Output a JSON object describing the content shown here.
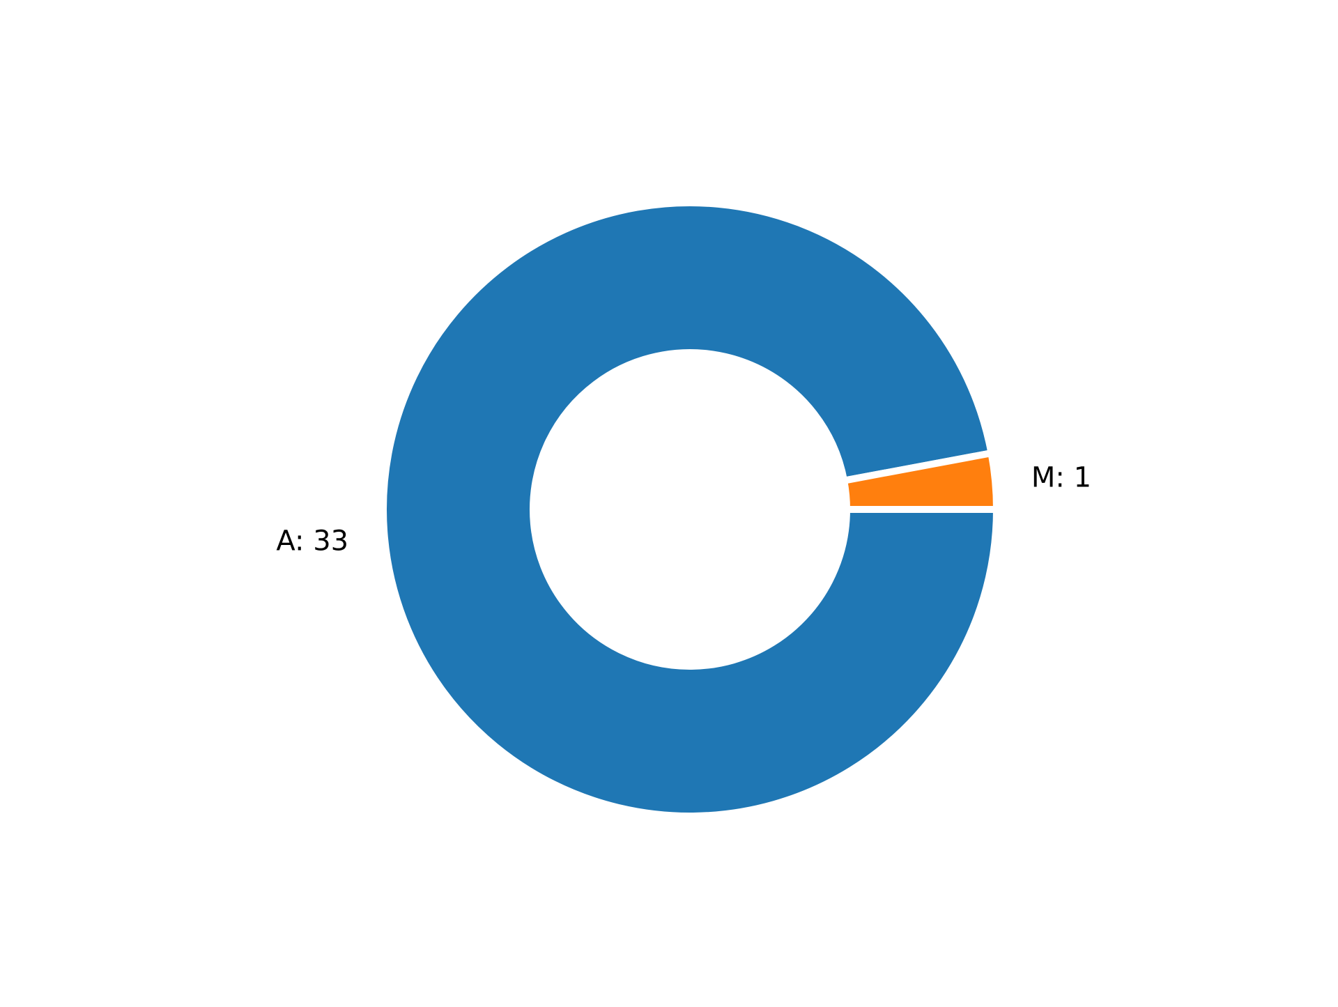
{
  "chart_data": {
    "type": "pie",
    "variant": "donut",
    "title": "",
    "slices": [
      {
        "label": "A: 33",
        "category": "A",
        "value": 33,
        "color": "#1f77b4"
      },
      {
        "label": "M: 1",
        "category": "M",
        "value": 1,
        "color": "#ff7f0e"
      }
    ],
    "start_angle_deg": 0,
    "direction": "clockwise",
    "legend": "none",
    "grid": false,
    "slice_edge_color": "#ffffff"
  }
}
